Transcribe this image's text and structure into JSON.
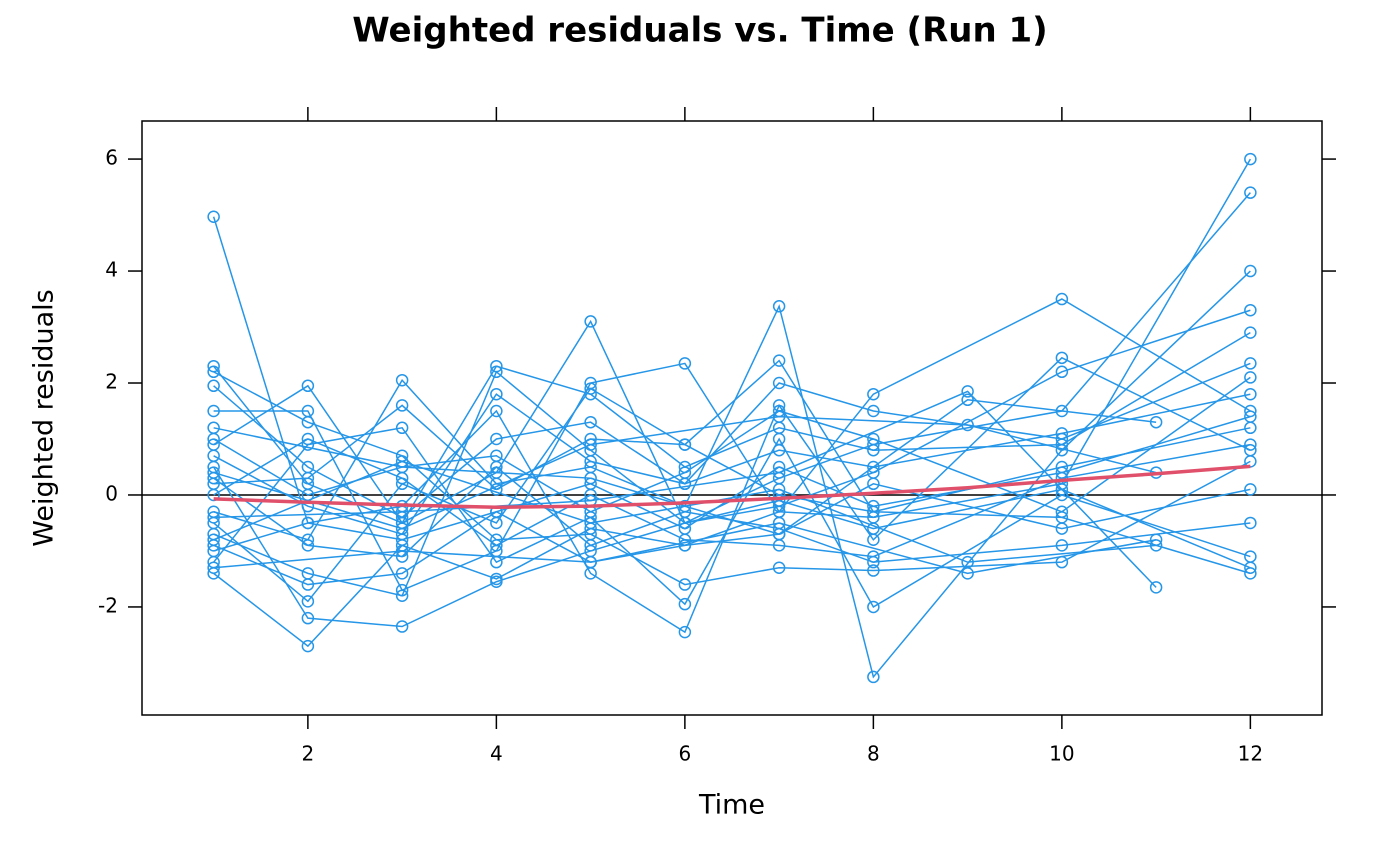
{
  "chart_data": {
    "type": "line",
    "title": "Weighted residuals vs. Time (Run 1)",
    "x_label": "Time",
    "y_label": "Weighted residuals",
    "xlim": [
      0.24,
      12.76
    ],
    "ylim": [
      -3.93,
      6.68
    ],
    "xticks": [
      2,
      4,
      6,
      8,
      10,
      12
    ],
    "yticks": [
      -2,
      0,
      2,
      4,
      6
    ],
    "reference_line": 0,
    "color": "#2596e8",
    "series": [
      {
        "x": [
          1,
          2,
          3,
          4,
          5,
          6,
          7,
          8,
          10,
          12
        ],
        "values": [
          4.97,
          -0.5,
          -0.8,
          -0.3,
          0.2,
          -0.6,
          0.5,
          -0.2,
          0.4,
          1.4
        ]
      },
      {
        "x": [
          1,
          2,
          3,
          4,
          5,
          6,
          7,
          8,
          10,
          12
        ],
        "values": [
          2.3,
          0.2,
          -0.5,
          2.3,
          1.8,
          0.5,
          1.2,
          0.8,
          0.9,
          2.9
        ]
      },
      {
        "x": [
          1,
          2,
          3,
          4,
          5,
          6,
          7,
          8,
          10,
          12
        ],
        "values": [
          -1.4,
          -2.7,
          -0.9,
          -1.5,
          -0.6,
          -0.9,
          -0.3,
          -0.4,
          0.2,
          6.0
        ]
      },
      {
        "x": [
          1,
          2,
          3,
          4,
          5,
          6,
          7,
          8,
          10,
          12
        ],
        "values": [
          0.9,
          1.95,
          -0.5,
          0.4,
          3.1,
          -0.5,
          0.3,
          0.9,
          1.5,
          5.4
        ]
      },
      {
        "x": [
          1,
          2,
          3,
          4,
          5,
          6,
          7,
          8,
          10,
          12
        ],
        "values": [
          -0.3,
          -0.8,
          2.05,
          0.2,
          0.5,
          -0.2,
          3.37,
          -3.25,
          0.8,
          4.0
        ]
      },
      {
        "x": [
          1,
          2,
          3,
          4,
          5,
          6,
          7,
          8,
          10,
          12
        ],
        "values": [
          1.5,
          1.5,
          -1.7,
          -1.0,
          2.0,
          2.35,
          -0.3,
          1.8,
          3.5,
          1.5
        ]
      },
      {
        "x": [
          1,
          2,
          3,
          4,
          5,
          6,
          7,
          8,
          10,
          12
        ],
        "values": [
          0.5,
          -2.2,
          -2.35,
          -1.55,
          -1.0,
          -0.5,
          -0.1,
          -0.6,
          0.1,
          -1.3
        ]
      },
      {
        "x": [
          1,
          2,
          3,
          4,
          5,
          6,
          7,
          8,
          10,
          12
        ],
        "values": [
          -1.0,
          -0.5,
          -0.2,
          1.5,
          -1.4,
          -2.45,
          1.6,
          -0.8,
          2.45,
          0.8
        ]
      },
      {
        "x": [
          1,
          2,
          3,
          4,
          5,
          6,
          7,
          8,
          10,
          12
        ],
        "values": [
          0.2,
          0.3,
          1.6,
          0.1,
          1.0,
          0.9,
          2.4,
          -0.3,
          -0.4,
          -1.4
        ]
      },
      {
        "x": [
          1,
          2,
          3,
          4,
          5,
          6,
          7,
          8,
          10,
          12
        ],
        "values": [
          2.2,
          1.3,
          0.7,
          -0.8,
          -0.7,
          -1.6,
          -1.3,
          -1.35,
          -1.2,
          0.6
        ]
      },
      {
        "x": [
          1,
          2,
          3,
          4,
          5,
          6,
          7,
          8,
          10,
          12
        ],
        "values": [
          -0.7,
          -1.4,
          -1.8,
          2.2,
          0.8,
          -0.5,
          -0.2,
          0.4,
          2.2,
          3.3
        ]
      },
      {
        "x": [
          1,
          2,
          3,
          4,
          5,
          6,
          7,
          8,
          10,
          12
        ],
        "values": [
          1.0,
          0.0,
          0.5,
          0.7,
          -0.3,
          0.4,
          1.5,
          1.0,
          -0.3,
          2.1
        ]
      },
      {
        "x": [
          1,
          2,
          3,
          4,
          5,
          6,
          7,
          8,
          10,
          12
        ],
        "values": [
          -0.5,
          -1.9,
          0.2,
          -0.5,
          1.9,
          0.9,
          0.0,
          -0.3,
          0.5,
          1.2
        ]
      },
      {
        "x": [
          1,
          2,
          3,
          4,
          5,
          6,
          7,
          8,
          10,
          12
        ],
        "values": [
          0.3,
          -0.9,
          -1.1,
          0.5,
          -0.9,
          -0.3,
          -0.6,
          -1.2,
          -0.9,
          -0.5
        ]
      },
      {
        "x": [
          1,
          2,
          3,
          4,
          5,
          6,
          7,
          8,
          10,
          12
        ],
        "values": [
          -1.2,
          0.9,
          1.2,
          -1.2,
          -0.4,
          -1.95,
          1.0,
          -2.0,
          0.0,
          -1.1
        ]
      },
      {
        "x": [
          1,
          2,
          3,
          4,
          5,
          6,
          7,
          8,
          10,
          12
        ],
        "values": [
          1.95,
          0.5,
          -0.4,
          1.0,
          1.3,
          0.2,
          2.0,
          1.5,
          1.0,
          2.35
        ]
      },
      {
        "x": [
          1,
          2,
          3,
          4,
          5,
          6,
          7,
          8,
          10,
          12
        ],
        "values": [
          -0.9,
          -1.6,
          -1.4,
          -0.3,
          -1.2,
          -0.9,
          -0.7,
          0.2,
          -0.6,
          0.1
        ]
      },
      {
        "x": [
          1,
          2,
          3,
          4,
          5,
          6,
          7,
          8,
          10,
          12
        ],
        "values": [
          0.0,
          1.0,
          0.3,
          -0.9,
          0.0,
          -0.8,
          -0.9,
          -1.1,
          0.3,
          0.9
        ]
      },
      {
        "x": [
          1,
          2,
          3,
          4,
          5,
          6,
          7,
          8,
          10,
          12
        ],
        "values": [
          0.7,
          -0.2,
          -0.7,
          1.8,
          0.6,
          0.2,
          0.8,
          0.5,
          1.1,
          1.8
        ]
      },
      {
        "x": [
          1,
          3,
          5,
          7,
          9,
          11
        ],
        "values": [
          -0.4,
          -0.3,
          -0.1,
          0.4,
          1.85,
          -1.65
        ]
      },
      {
        "x": [
          1,
          3,
          5,
          7,
          9,
          11
        ],
        "values": [
          1.2,
          0.5,
          0.3,
          -0.7,
          1.7,
          1.3
        ]
      },
      {
        "x": [
          1,
          3,
          5,
          7,
          9,
          11
        ],
        "values": [
          -1.3,
          -1.0,
          -1.2,
          -0.5,
          -1.4,
          -0.8
        ]
      },
      {
        "x": [
          1,
          3,
          5,
          7,
          9,
          11
        ],
        "values": [
          0.4,
          -0.6,
          0.9,
          1.4,
          1.25,
          0.4
        ]
      },
      {
        "x": [
          1,
          3,
          5,
          7,
          9,
          11
        ],
        "values": [
          -0.8,
          0.6,
          -0.5,
          0.1,
          -1.2,
          -0.9
        ]
      }
    ],
    "smooth": {
      "color": "#e0506a",
      "x": [
        1,
        2,
        3,
        4,
        5,
        6,
        7,
        8,
        9,
        10,
        11,
        12
      ],
      "values": [
        -0.07,
        -0.13,
        -0.18,
        -0.22,
        -0.2,
        -0.14,
        -0.06,
        0.03,
        0.13,
        0.26,
        0.38,
        0.51
      ]
    }
  }
}
